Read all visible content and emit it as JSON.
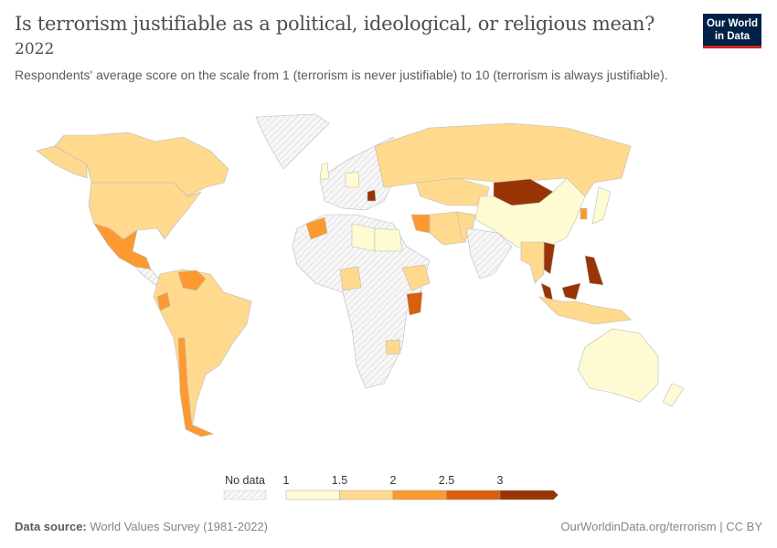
{
  "header": {
    "title": "Is terrorism justifiable as a political, ideological, or religious mean?",
    "year": "2022",
    "subtitle": "Respondents' average score on the scale from 1 (terrorism is never justifiable) to 10 (terrorism is always justifiable).",
    "logo_line1": "Our World",
    "logo_line2": "in Data"
  },
  "legend": {
    "no_data_label": "No data",
    "ticks": [
      "1",
      "1.5",
      "2",
      "2.5",
      "3"
    ],
    "bins": [
      {
        "range": "1–1.5",
        "color": "#fefbd2"
      },
      {
        "range": "1.5–2",
        "color": "#fed98e"
      },
      {
        "range": "2–2.5",
        "color": "#fe992f"
      },
      {
        "range": "2.5–3",
        "color": "#d95f0e"
      },
      {
        "range": ">3",
        "color": "#993404"
      }
    ],
    "no_data_color": "#e3e3e3"
  },
  "countries": [
    {
      "name": "Greenland",
      "bin": null
    },
    {
      "name": "Canada",
      "bin": 1
    },
    {
      "name": "United States",
      "bin": 1
    },
    {
      "name": "Mexico",
      "bin": 2
    },
    {
      "name": "Central America",
      "bin": null
    },
    {
      "name": "South America",
      "bin": 1
    },
    {
      "name": "Venezuela",
      "bin": 2
    },
    {
      "name": "Ecuador",
      "bin": 2
    },
    {
      "name": "Chile",
      "bin": 2
    },
    {
      "name": "Africa",
      "bin": null
    },
    {
      "name": "Morocco",
      "bin": 2
    },
    {
      "name": "Libya",
      "bin": 0
    },
    {
      "name": "Egypt",
      "bin": 0
    },
    {
      "name": "Nigeria",
      "bin": 1
    },
    {
      "name": "Ethiopia",
      "bin": 1
    },
    {
      "name": "Kenya",
      "bin": 3
    },
    {
      "name": "Zimbabwe",
      "bin": 1
    },
    {
      "name": "Europe",
      "bin": null
    },
    {
      "name": "United Kingdom",
      "bin": 0
    },
    {
      "name": "Germany",
      "bin": 0
    },
    {
      "name": "Serbia",
      "bin": 4
    },
    {
      "name": "Russia",
      "bin": 1
    },
    {
      "name": "Kazakhstan",
      "bin": 1
    },
    {
      "name": "Mongolia",
      "bin": 4
    },
    {
      "name": "China",
      "bin": 0
    },
    {
      "name": "Iran",
      "bin": 1
    },
    {
      "name": "Iraq",
      "bin": 2
    },
    {
      "name": "Pakistan",
      "bin": 1
    },
    {
      "name": "India",
      "bin": null
    },
    {
      "name": "South Korea",
      "bin": 2
    },
    {
      "name": "Japan",
      "bin": 0
    },
    {
      "name": "Vietnam",
      "bin": 4
    },
    {
      "name": "Thailand/Myanmar",
      "bin": 1
    },
    {
      "name": "Malaysia",
      "bin": 4
    },
    {
      "name": "Philippines",
      "bin": 4
    },
    {
      "name": "Indonesia",
      "bin": 1
    },
    {
      "name": "Australia",
      "bin": 0
    },
    {
      "name": "New Zealand",
      "bin": 0
    }
  ],
  "footer": {
    "source_label": "Data source:",
    "source": "World Values Survey (1981-2022)",
    "url": "OurWorldinData.org/terrorism",
    "license": "| CC BY"
  }
}
